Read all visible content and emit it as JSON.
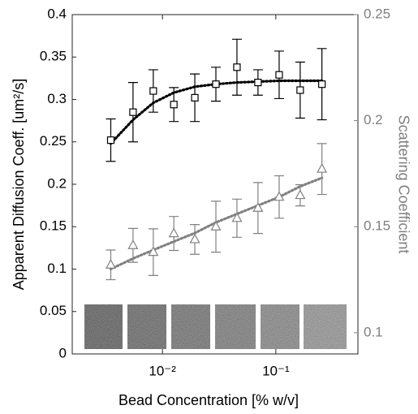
{
  "chart_data": {
    "type": "errorbar",
    "x": [
      0.0035,
      0.0055,
      0.0083,
      0.0126,
      0.0193,
      0.0296,
      0.0454,
      0.0696,
      0.107,
      0.164,
      0.255
    ],
    "xlabel": "Bead Concentration [% w/v]",
    "ylabel": "Apparent Diffusion Coeff. [um²/s]",
    "y2label": "Scattering Coefficient",
    "xscale": "log",
    "xlim": [
      0.0016,
      0.53
    ],
    "xticks": [
      {
        "value": 0.01,
        "label": "10⁻²"
      },
      {
        "value": 0.1,
        "label": "10⁻¹"
      }
    ],
    "ylim": [
      0,
      0.4
    ],
    "yticks": [
      0,
      0.05,
      0.1,
      0.15,
      0.2,
      0.25,
      0.3,
      0.35,
      0.4
    ],
    "y2lim": [
      0.09,
      0.25
    ],
    "y2ticks": [
      0.1,
      0.15,
      0.2,
      0.25
    ],
    "series": [
      {
        "color": "#000000",
        "marker": "square",
        "axis": "y",
        "values": [
          0.252,
          0.285,
          0.31,
          0.294,
          0.302,
          0.318,
          0.338,
          0.32,
          0.329,
          0.311,
          0.318
        ],
        "errors": [
          0.025,
          0.035,
          0.025,
          0.02,
          0.028,
          0.02,
          0.033,
          0.015,
          0.028,
          0.033,
          0.042
        ],
        "fit": [
          0.248,
          0.276,
          0.296,
          0.308,
          0.315,
          0.318,
          0.32,
          0.321,
          0.322,
          0.322,
          0.322
        ]
      },
      {
        "color": "#808080",
        "marker": "triangle",
        "axis": "y2",
        "values": [
          0.132,
          0.1412,
          0.138,
          0.1468,
          0.144,
          0.15,
          0.154,
          0.1588,
          0.164,
          0.1648,
          0.1772
        ],
        "errors": [
          0.007,
          0.008,
          0.011,
          0.008,
          0.007,
          0.012,
          0.009,
          0.012,
          0.01,
          0.005,
          0.012
        ],
        "fit": [
          0.13,
          0.135,
          0.139,
          0.143,
          0.147,
          0.152,
          0.156,
          0.16,
          0.164,
          0.169,
          0.173
        ]
      }
    ]
  }
}
